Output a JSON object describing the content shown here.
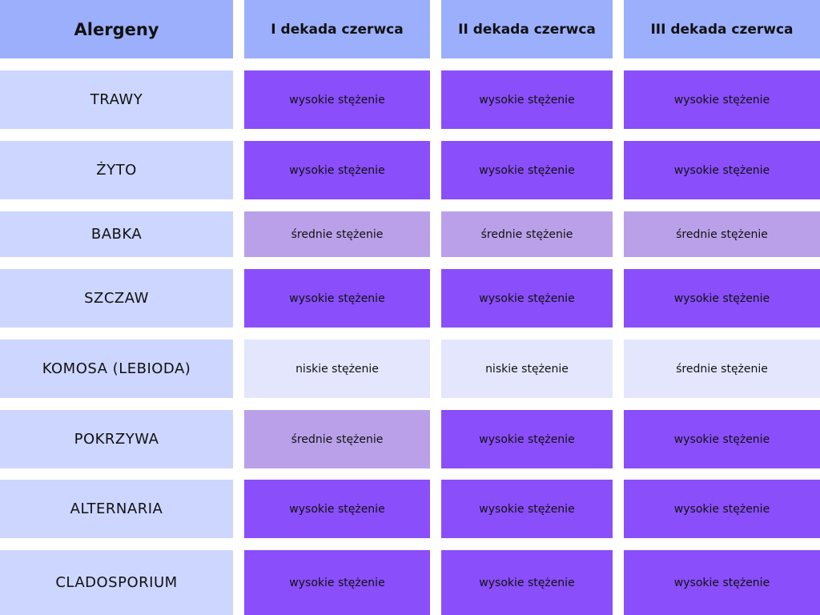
{
  "table": {
    "header": [
      "Alergeny",
      "I dekada czerwca",
      "II dekada czerwca",
      "III dekada czerwca"
    ],
    "rows": [
      [
        "TRAWY",
        "wysokie stężenie",
        "wysokie stężenie",
        "wysokie stężenie"
      ],
      [
        "ŻYTO",
        "wysokie stężenie",
        "wysokie stężenie",
        "wysokie stężenie"
      ],
      [
        "BABKA",
        "średnie stężenie",
        "średnie stężenie",
        "średnie stężenie"
      ],
      [
        "SZCZAW",
        "wysokie stężenie",
        "wysokie stężenie",
        "wysokie stężenie"
      ],
      [
        "KOMOSA (LEBIODA)",
        "niskie stężenie",
        "niskie stężenie",
        "średnie stężenie"
      ],
      [
        "POKRZYWA",
        "średnie stężenie",
        "wysokie stężenie",
        "wysokie stężenie"
      ],
      [
        "ALTERNARIA",
        "wysokie stężenie",
        "wysokie stężenie",
        "wysokie stężenie"
      ],
      [
        "CLADOSPORIUM",
        "wysokie stężenie",
        "wysokie stężenie",
        "wysokie stężenie"
      ]
    ]
  }
}
